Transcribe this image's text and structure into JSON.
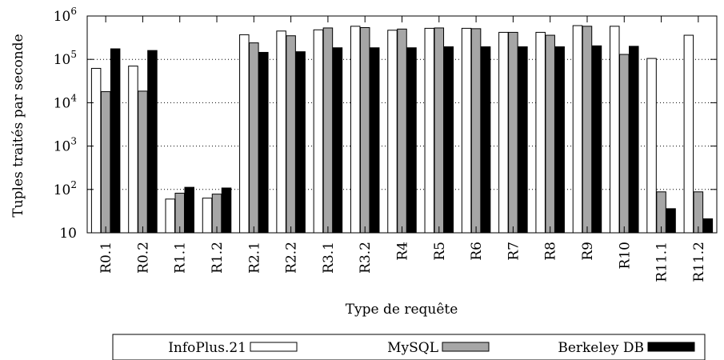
{
  "chart_data": {
    "type": "bar",
    "scale": "log",
    "ylim": [
      10,
      1000000
    ],
    "y_ticks": [
      {
        "value": 10,
        "base": "10",
        "exp": ""
      },
      {
        "value": 100,
        "base": "10",
        "exp": "2"
      },
      {
        "value": 1000,
        "base": "10",
        "exp": "3"
      },
      {
        "value": 10000,
        "base": "10",
        "exp": "4"
      },
      {
        "value": 100000,
        "base": "10",
        "exp": "5"
      },
      {
        "value": 1000000,
        "base": "10",
        "exp": "6"
      }
    ],
    "grid": "horizontal-dotted",
    "legend_position": "bottom",
    "xlabel": "Type de requête",
    "ylabel": "Tuples traités par seconde",
    "categories": [
      "R0.1",
      "R0.2",
      "R1.1",
      "R1.2",
      "R2.1",
      "R2.2",
      "R3.1",
      "R3.2",
      "R4",
      "R5",
      "R6",
      "R7",
      "R8",
      "R9",
      "R10",
      "R11.1",
      "R11.2"
    ],
    "series": [
      {
        "name": "InfoPlus.21",
        "color": "#ffffff",
        "values": [
          62000,
          70000,
          60,
          63,
          370000,
          450000,
          480000,
          580000,
          470000,
          520000,
          520000,
          420000,
          420000,
          600000,
          580000,
          105000,
          360000
        ]
      },
      {
        "name": "MySQL",
        "color": "#a6a6a6",
        "values": [
          18000,
          18500,
          82,
          78,
          240000,
          350000,
          530000,
          540000,
          500000,
          530000,
          510000,
          420000,
          360000,
          580000,
          130000,
          88,
          88
        ]
      },
      {
        "name": "Berkeley DB",
        "color": "#000000",
        "values": [
          175000,
          160000,
          112,
          108,
          145000,
          150000,
          185000,
          185000,
          185000,
          195000,
          195000,
          195000,
          195000,
          205000,
          200000,
          36,
          21
        ]
      }
    ]
  }
}
